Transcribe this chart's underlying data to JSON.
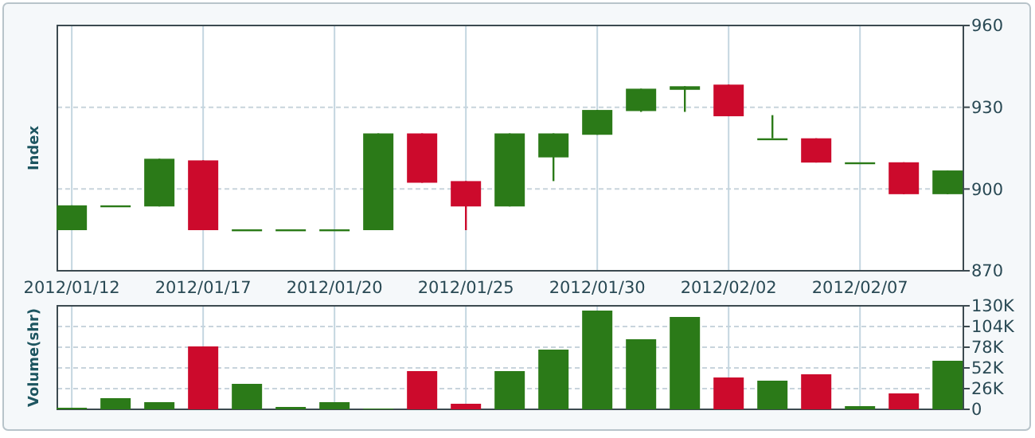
{
  "chart_data": [
    {
      "type": "candlestick",
      "ylabel": "Index",
      "categories": [
        "2012/01/12",
        null,
        null,
        "2012/01/17",
        null,
        null,
        "2012/01/20",
        null,
        null,
        "2012/01/25",
        null,
        null,
        "2012/01/30",
        null,
        null,
        "2012/02/02",
        null,
        null,
        "2012/02/07",
        null,
        null
      ],
      "ohlc": [
        [
          884.9,
          894,
          884.9,
          894
        ],
        [
          894,
          894,
          894,
          894
        ],
        [
          893.6,
          911.1,
          893.6,
          911.1
        ],
        [
          910.5,
          910.5,
          884.9,
          884.9
        ],
        [
          885.2,
          885.2,
          885.2,
          885.2
        ],
        [
          885.2,
          885.2,
          885.2,
          885.2
        ],
        [
          885.2,
          885.2,
          885.2,
          885.2
        ],
        [
          884.9,
          920.4,
          884.9,
          920.4
        ],
        [
          920.4,
          920.4,
          902.3,
          902.3
        ],
        [
          902.9,
          902.9,
          884.9,
          893.6
        ],
        [
          893.6,
          920.4,
          893.6,
          920.4
        ],
        [
          911.6,
          920.4,
          902.9,
          920.4
        ],
        [
          919.9,
          929,
          919.9,
          929
        ],
        [
          928.6,
          936.8,
          928.3,
          936.8
        ],
        [
          936.4,
          937.7,
          928.3,
          937.7
        ],
        [
          938.3,
          938.3,
          926.7,
          926.7
        ],
        [
          918.6,
          927.1,
          918.6,
          918.6
        ],
        [
          918.6,
          918.6,
          909.7,
          909.7
        ],
        [
          909.8,
          909.8,
          909.8,
          909.8
        ],
        [
          909.8,
          909.8,
          898.1,
          898.1
        ],
        [
          898.1,
          906.8,
          898.1,
          906.8
        ]
      ],
      "colors": [
        "#2b7a18",
        "#2b7a18",
        "#2b7a18",
        "#cc0a2c",
        "#2b7a18",
        "#2b7a18",
        "#2b7a18",
        "#2b7a18",
        "#cc0a2c",
        "#cc0a2c",
        "#2b7a18",
        "#2b7a18",
        "#2b7a18",
        "#2b7a18",
        "#2b7a18",
        "#cc0a2c",
        "#2b7a18",
        "#cc0a2c",
        "#2b7a18",
        "#cc0a2c",
        "#2b7a18"
      ],
      "ylim": [
        870,
        960
      ],
      "yticks": [
        870,
        900,
        930,
        960
      ],
      "grid": true
    },
    {
      "type": "bar",
      "ylabel": "Volume(shr)",
      "categories": [
        "2012/01/12",
        null,
        null,
        "2012/01/17",
        null,
        null,
        "2012/01/20",
        null,
        null,
        "2012/01/25",
        null,
        null,
        "2012/01/30",
        null,
        null,
        "2012/02/02",
        null,
        null,
        "2012/02/07",
        null,
        null
      ],
      "values": [
        2,
        14,
        9,
        79,
        32,
        3,
        9,
        1,
        48,
        7,
        48,
        75,
        124,
        88,
        116,
        40,
        36,
        44,
        4,
        20,
        61
      ],
      "colors": [
        "#2b7a18",
        "#2b7a18",
        "#2b7a18",
        "#cc0a2c",
        "#2b7a18",
        "#2b7a18",
        "#2b7a18",
        "#2b7a18",
        "#cc0a2c",
        "#cc0a2c",
        "#2b7a18",
        "#2b7a18",
        "#2b7a18",
        "#2b7a18",
        "#2b7a18",
        "#cc0a2c",
        "#2b7a18",
        "#cc0a2c",
        "#2b7a18",
        "#cc0a2c",
        "#2b7a18"
      ],
      "ylim": [
        0,
        130
      ],
      "yticks": [
        0,
        {
          "value": 26,
          "label": "26K"
        },
        {
          "value": 52,
          "label": "52K"
        },
        {
          "value": 78,
          "label": "78K"
        },
        {
          "value": 104,
          "label": "104K"
        },
        {
          "value": 130,
          "label": "130K"
        }
      ],
      "grid": true,
      "tick_labels": "y"
    }
  ]
}
